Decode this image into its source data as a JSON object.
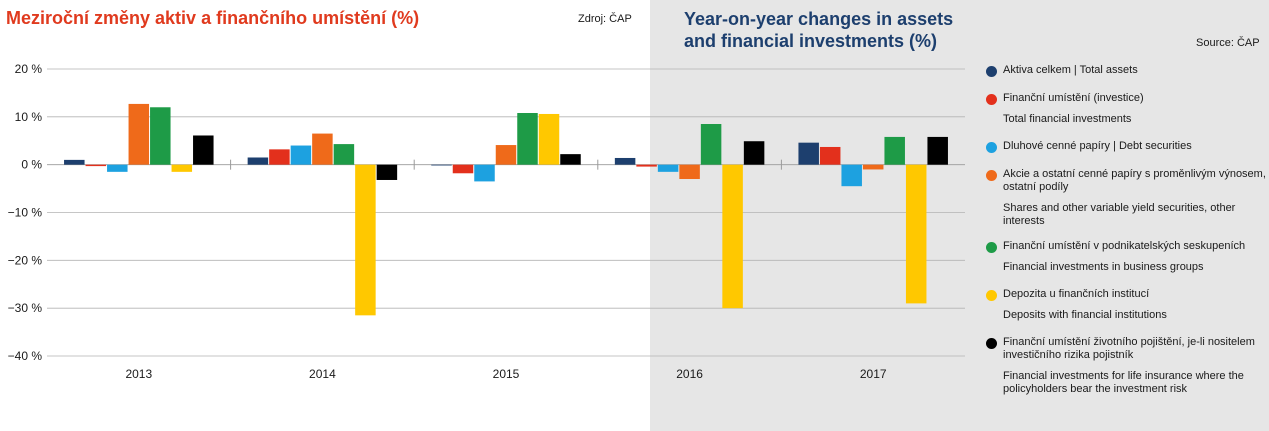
{
  "title_cz": "Meziroční změny aktiv a finančního umístění (%)",
  "source_cz": "Zdroj: ČAP",
  "title_en": "Year-on-year changes in assets and financial investments (%)",
  "source_en": "Source: ČAP",
  "chart_data": {
    "type": "bar",
    "categories": [
      "2013",
      "2014",
      "2015",
      "2016",
      "2017"
    ],
    "ylim": [
      -40,
      20
    ],
    "yticks": [
      20,
      10,
      0,
      -10,
      -20,
      -30,
      -40
    ],
    "ytick_labels": [
      "20 %",
      "10 %",
      "0 %",
      "−10 %",
      "−20 %",
      "−30 %",
      "−40 %"
    ],
    "grid": "horizontal",
    "legend_position": "right",
    "series": [
      {
        "name": "Aktiva celkem | Total assets",
        "color": "#1d3f6e",
        "values": [
          1.0,
          1.5,
          0.0,
          1.4,
          4.6
        ]
      },
      {
        "name": "Finanční umístění (investice) / Total financial investments",
        "color": "#e3301c",
        "values": [
          -0.3,
          3.2,
          -1.8,
          -0.4,
          3.7
        ]
      },
      {
        "name": "Dluhové cenné papíry | Debt securities",
        "color": "#1da1e0",
        "values": [
          -1.5,
          4.0,
          -3.5,
          -1.5,
          -4.5
        ]
      },
      {
        "name": "Akcie a ostatní cenné papíry s proměnlivým výnosem, ostatní podíly / Shares and other variable yield securities, other interests",
        "color": "#ef6a1a",
        "values": [
          12.7,
          6.5,
          4.1,
          -3.0,
          -1.0
        ]
      },
      {
        "name": "Finanční umístění v podnikatelských seskupeních / Financial investments in business groups",
        "color": "#1e9b47",
        "values": [
          12.0,
          4.3,
          10.8,
          8.5,
          5.8
        ]
      },
      {
        "name": "Depozita u finančních institucí / Deposits with financial institutions",
        "color": "#ffc800",
        "values": [
          -1.5,
          -31.5,
          10.6,
          -30.0,
          -29.0
        ]
      },
      {
        "name": "Finanční umístění životního pojištění, je-li nositelem investičního rizika pojistník / Financial investments for life insurance where the policyholders bear the investment risk",
        "color": "#000000",
        "values": [
          6.1,
          -3.2,
          2.2,
          4.9,
          5.8
        ]
      }
    ]
  },
  "legend": [
    {
      "cz": "Aktiva celkem | Total assets",
      "en": "",
      "color": "#1d3f6e"
    },
    {
      "cz": "Finanční umístění (investice)",
      "en": "Total financial investments",
      "color": "#e3301c"
    },
    {
      "cz": "Dluhové cenné papíry | Debt securities",
      "en": "",
      "color": "#1da1e0"
    },
    {
      "cz": "Akcie a ostatní cenné papíry s proměnlivým výnosem, ostatní podíly",
      "en": "Shares and other variable yield securities, other interests",
      "color": "#ef6a1a"
    },
    {
      "cz": "Finanční umístění v podnikatelských seskupeních",
      "en": "Financial investments in business groups",
      "color": "#1e9b47"
    },
    {
      "cz": "Depozita u finančních institucí",
      "en": "Deposits with financial institutions",
      "color": "#ffc800"
    },
    {
      "cz": "Finanční umístění životního pojištění, je-li nositelem investičního rizika pojistník",
      "en": "Financial investments for life insurance where the policyholders bear the investment risk",
      "color": "#000000"
    }
  ]
}
